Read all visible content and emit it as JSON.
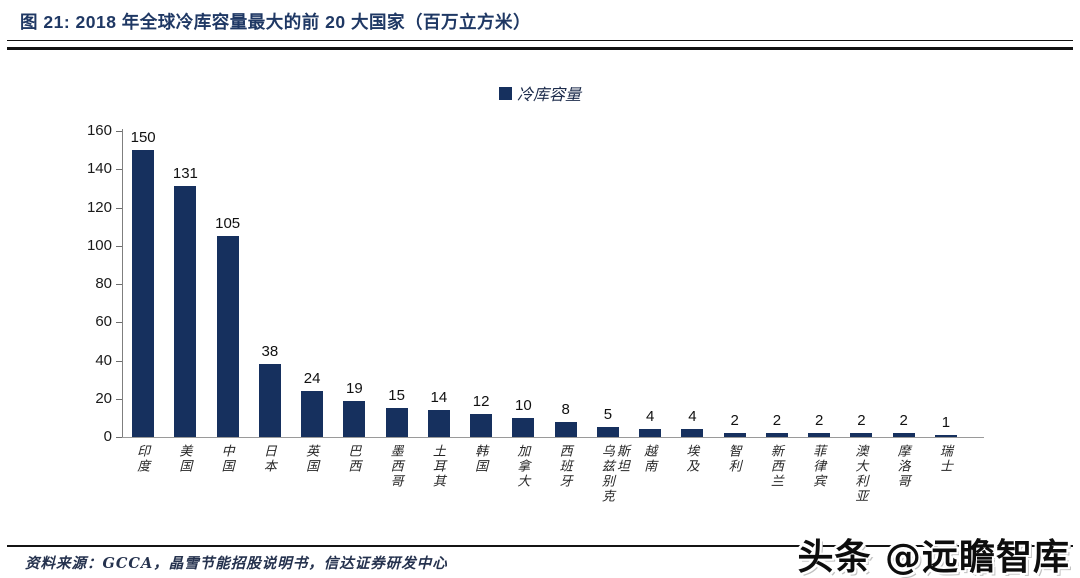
{
  "figure": {
    "title": "图 21:  2018 年全球冷库容量最大的前 20 大国家（百万立方米）",
    "source": "资料来源：GCCA，晶雪节能招股说明书，信达证券研发中心",
    "watermark": "头条 @远瞻智库"
  },
  "legend": {
    "label": "冷库容量"
  },
  "colors": {
    "bar": "#16305e",
    "title": "#1f3864",
    "axis": "#7f7f7f",
    "value_label": "#111111"
  },
  "chart_data": {
    "type": "bar",
    "title": "2018 年全球冷库容量最大的前 20 大国家（百万立方米）",
    "series_name": "冷库容量",
    "categories": [
      "印度",
      "美国",
      "中国",
      "日本",
      "英国",
      "巴西",
      "墨西哥",
      "土耳其",
      "韩国",
      "加拿大",
      "西班牙",
      "乌兹别克斯坦",
      "越南",
      "埃及",
      "智利",
      "新西兰",
      "菲律宾",
      "澳大利亚",
      "摩洛哥",
      "瑞士"
    ],
    "values": [
      150,
      131,
      105,
      38,
      24,
      19,
      15,
      14,
      12,
      10,
      8,
      5,
      4,
      4,
      2,
      2,
      2,
      2,
      2,
      1
    ],
    "xlabel": "",
    "ylabel": "",
    "ylim": [
      0,
      160
    ],
    "yticks": [
      0,
      20,
      40,
      60,
      80,
      100,
      120,
      140,
      160
    ],
    "grid": false,
    "data_labels": true,
    "legend_position": "top-center"
  }
}
